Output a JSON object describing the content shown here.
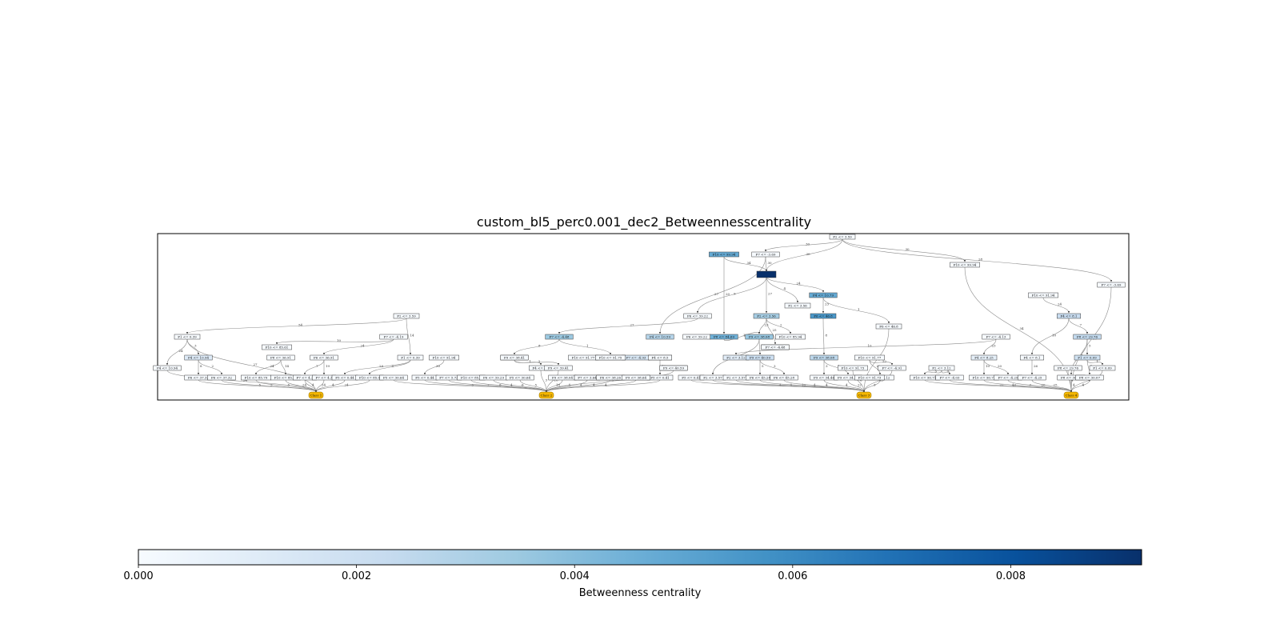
{
  "figure": {
    "title": "custom_bl5_perc0.001_dec2_Betweennesscentrality"
  },
  "colorbar": {
    "label": "Betweenness centrality",
    "min": 0.0,
    "max": 0.0092,
    "ticks": [
      "0.000",
      "0.002",
      "0.004",
      "0.006",
      "0.008"
    ],
    "tick_values": [
      0.0,
      0.002,
      0.004,
      0.006,
      0.008
    ],
    "colormap": [
      "#f7fbff",
      "#deebf7",
      "#c6dbef",
      "#9ecae1",
      "#6baed6",
      "#4292c6",
      "#2171b5",
      "#08519c",
      "#08306b"
    ]
  },
  "chart_data": {
    "type": "graph",
    "class_color": "#f5b700",
    "edge_color": "#8a8a8a",
    "nodes": [
      {
        "id": "n0",
        "label": "F2 <= 3.59",
        "c": 0.0
      },
      {
        "id": "n1",
        "label": "F10 <= 99.94",
        "c": 0.0048
      },
      {
        "id": "n2",
        "label": "F7 <= -3.69",
        "c": 0.0
      },
      {
        "id": "n3",
        "label": "F10 <= 99.94",
        "c": 0.0
      },
      {
        "id": "n4",
        "label": "",
        "c": 0.0092
      },
      {
        "id": "n5",
        "label": "F7 <= -3.69",
        "c": 0.0
      },
      {
        "id": "n6",
        "label": "F4 <= 10.79",
        "c": 0.0048
      },
      {
        "id": "n7",
        "label": "F2 <= 3.56",
        "c": 0.0
      },
      {
        "id": "n8",
        "label": "F10 <= 91.94",
        "c": 0.0
      },
      {
        "id": "n9",
        "label": "F2 <= 3.59",
        "c": 0.0
      },
      {
        "id": "n10",
        "label": "F2 <= 3.56",
        "c": 0.0032
      },
      {
        "id": "n11",
        "label": "F6 <= 46.8",
        "c": 0.0055
      },
      {
        "id": "n12",
        "label": "F6 <= 39.22",
        "c": 0.0
      },
      {
        "id": "n13",
        "label": "F6 <= 46.8",
        "c": 0.0
      },
      {
        "id": "n14",
        "label": "F4 <= 8.1",
        "c": 0.0022
      },
      {
        "id": "n15",
        "label": "F1 <= 0.39",
        "c": 0.0
      },
      {
        "id": "n16",
        "label": "F7 <= -4.19",
        "c": 0.0
      },
      {
        "id": "n17",
        "label": "F7 <= -4.48",
        "c": 0.0035
      },
      {
        "id": "n18",
        "label": "F4 <= 10.59",
        "c": 0.0028
      },
      {
        "id": "n19",
        "label": "F6 <= 39.22",
        "c": 0.0
      },
      {
        "id": "n20",
        "label": "F8 <= 84.69",
        "c": 0.0045
      },
      {
        "id": "n21",
        "label": "F9 <= 38.08",
        "c": 0.0036
      },
      {
        "id": "n22",
        "label": "F10 <= 85.94",
        "c": 0.0
      },
      {
        "id": "n23",
        "label": "F7 <= -4.13",
        "c": 0.0
      },
      {
        "id": "n24",
        "label": "F8 <= 29.76",
        "c": 0.0024
      },
      {
        "id": "n25",
        "label": "F10 <= 85.61",
        "c": 0.0
      },
      {
        "id": "n26",
        "label": "F7 <= -4.48",
        "c": 0.0
      },
      {
        "id": "n27",
        "label": "F4 <= 10.94",
        "c": 0.0012
      },
      {
        "id": "n28",
        "label": "F8 <= 36.91",
        "c": 0.0
      },
      {
        "id": "n29",
        "label": "F6 <= 36.91",
        "c": 0.0
      },
      {
        "id": "n30",
        "label": "F1 <= 0.39",
        "c": 0.0
      },
      {
        "id": "n31",
        "label": "F10 <= 91.94",
        "c": 0.0
      },
      {
        "id": "n32",
        "label": "F9 <= 39.41",
        "c": 0.0028
      },
      {
        "id": "n33",
        "label": "F10 <= 91.77",
        "c": 0.0
      },
      {
        "id": "n34",
        "label": "F10 <= 91.79",
        "c": 0.0016
      },
      {
        "id": "n35",
        "label": "F7 <= -4.93",
        "c": 0.0014
      },
      {
        "id": "n36",
        "label": "F4 <= 8.3",
        "c": 0.0014
      },
      {
        "id": "n37",
        "label": "F2 <= 3.12",
        "c": 0.0009
      },
      {
        "id": "n38",
        "label": "F9 <= 40.59",
        "c": 0.002
      },
      {
        "id": "n39",
        "label": "F9 <= 38.08",
        "c": 0.0026
      },
      {
        "id": "n40",
        "label": "F10 <= 91.77",
        "c": 0.0
      },
      {
        "id": "n41",
        "label": "F2 <= 3.12",
        "c": 0.0
      },
      {
        "id": "n42",
        "label": "F4 <= 8.25",
        "c": 0.0008
      },
      {
        "id": "n43",
        "label": "F4 <= 8.1",
        "c": 0.0
      },
      {
        "id": "n44",
        "label": "F1 <= 0.09",
        "c": 0.0018
      },
      {
        "id": "n45",
        "label": "F4 <= 10.94",
        "c": 0.0
      },
      {
        "id": "n46",
        "label": "F6 <= 37.32",
        "c": 0.0
      },
      {
        "id": "n47",
        "label": "F6 <= 37.32",
        "c": 0.0
      },
      {
        "id": "n48",
        "label": "F10 <= 85.79",
        "c": 0.0
      },
      {
        "id": "n49",
        "label": "F10 <= 85.79",
        "c": 0.0
      },
      {
        "id": "n50",
        "label": "F7 <= 4.3",
        "c": 0.0
      },
      {
        "id": "n51",
        "label": "F7 <= 4.3",
        "c": 0.0
      },
      {
        "id": "n52",
        "label": "F5 <= 0.44",
        "c": 0.0
      },
      {
        "id": "n53",
        "label": "F10 <= 85.0",
        "c": 0.0
      },
      {
        "id": "n54",
        "label": "F5 <= 30.64",
        "c": 0.0
      },
      {
        "id": "n55",
        "label": "F5 <= 0.44",
        "c": 0.0
      },
      {
        "id": "n56",
        "label": "F7 <= 5.73",
        "c": 0.0
      },
      {
        "id": "n57",
        "label": "F10 <= 85.0",
        "c": 0.0
      },
      {
        "id": "n58",
        "label": "F6 <= 39.29",
        "c": 0.0
      },
      {
        "id": "n59",
        "label": "F5 <= 30.64",
        "c": 0.0
      },
      {
        "id": "n60",
        "label": "F4 <= 8.3",
        "c": 0.0
      },
      {
        "id": "n61",
        "label": "F9 <= 39.41",
        "c": 0.0
      },
      {
        "id": "n62",
        "label": "F9 <= 38.04",
        "c": 0.0
      },
      {
        "id": "n63",
        "label": "F7 <= 5.73",
        "c": 0.0
      },
      {
        "id": "n64",
        "label": "F6 <= 39.29",
        "c": 0.0
      },
      {
        "id": "n65",
        "label": "F9 <= 38.04",
        "c": 0.0
      },
      {
        "id": "n66",
        "label": "F5 <= 0.41",
        "c": 0.0
      },
      {
        "id": "n67",
        "label": "F9 <= 40.59",
        "c": 0.0
      },
      {
        "id": "n68",
        "label": "F5 <= 0.41",
        "c": 0.0
      },
      {
        "id": "n69",
        "label": "F2 <= 3.57",
        "c": 0.0
      },
      {
        "id": "n70",
        "label": "F2 <= 3.57",
        "c": 0.0
      },
      {
        "id": "n71",
        "label": "F6 <= 45.28",
        "c": 0.0
      },
      {
        "id": "n72",
        "label": "F6 <= 45.28",
        "c": 0.0
      },
      {
        "id": "n73",
        "label": "F9 <= 34.46",
        "c": 0.0
      },
      {
        "id": "n74",
        "label": "F9 <= 34.46",
        "c": 0.0
      },
      {
        "id": "n75",
        "label": "F10 <= 91.73",
        "c": 0.0
      },
      {
        "id": "n76",
        "label": "F7 <= -4.12",
        "c": 0.0
      },
      {
        "id": "n77",
        "label": "F7 <= -4.91",
        "c": 0.0
      },
      {
        "id": "n78",
        "label": "F10 <= 90.71",
        "c": 0.0
      },
      {
        "id": "n79",
        "label": "F7 <= -4.03",
        "c": 0.0
      },
      {
        "id": "n80",
        "label": "F10 <= 90.71",
        "c": 0.0
      },
      {
        "id": "n81",
        "label": "F7 <= -4.25",
        "c": 0.0
      },
      {
        "id": "n82",
        "label": "F7 <= -4.25",
        "c": 0.0
      },
      {
        "id": "n83",
        "label": "F8 <= 29.76",
        "c": 0.0
      },
      {
        "id": "n84",
        "label": "F8 <= 30.07",
        "c": 0.0
      },
      {
        "id": "n85",
        "label": "F8 <= 30.07",
        "c": 0.0
      },
      {
        "id": "n86",
        "label": "F1 <= 0.09",
        "c": 0.0
      },
      {
        "id": "n87",
        "label": "F10 <= 91.73",
        "c": 0.0
      },
      {
        "id": "n88",
        "label": "F10 <= 91.75",
        "c": 0.0
      },
      {
        "id": "n89",
        "label": "F7 <= -4.48",
        "c": 0.0
      },
      {
        "id": "n90",
        "label": "F9 <= 38.41",
        "c": 0.0
      },
      {
        "id": "n91",
        "label": "F7 <= 3.64",
        "c": 0.0
      },
      {
        "id": "n92",
        "label": "F6 <= 38.26",
        "c": 0.0
      },
      {
        "id": "n93",
        "label": "F9 <= 38.64",
        "c": 0.0
      },
      {
        "id": "n94",
        "label": "F9 <= 40.59",
        "c": 0.0
      },
      {
        "id": "n95",
        "label": "F4 <= 8.5",
        "c": 0.0
      }
    ],
    "classes": [
      {
        "id": "c1",
        "label": "Class 1"
      },
      {
        "id": "c2",
        "label": "Class 2"
      },
      {
        "id": "c3",
        "label": "Class 3"
      },
      {
        "id": "c4",
        "label": "Class 4"
      }
    ],
    "edges": [
      {
        "from": "n0",
        "to": "n2",
        "w": "30"
      },
      {
        "from": "n0",
        "to": "n3",
        "w": "30"
      },
      {
        "from": "n0",
        "to": "n5",
        "w": "28"
      },
      {
        "from": "n0",
        "to": "n4",
        "w": "30"
      },
      {
        "from": "n1",
        "to": "n4",
        "w": "34"
      },
      {
        "from": "n1",
        "to": "n20",
        "w": "20"
      },
      {
        "from": "n2",
        "to": "n4",
        "w": "30"
      },
      {
        "from": "n2",
        "to": "n18",
        "w": "27"
      },
      {
        "from": "n4",
        "to": "n6",
        "w": "24"
      },
      {
        "from": "n4",
        "to": "n7",
        "w": "4"
      },
      {
        "from": "n4",
        "to": "n10",
        "w": "27"
      },
      {
        "from": "n4",
        "to": "n12",
        "w": "9"
      },
      {
        "from": "n6",
        "to": "n11",
        "w": "23"
      },
      {
        "from": "n6",
        "to": "n13",
        "w": "1"
      },
      {
        "from": "n10",
        "to": "n21",
        "w": "23"
      },
      {
        "from": "n10",
        "to": "n22",
        "w": "2"
      },
      {
        "from": "n10",
        "to": "n26",
        "w": "25"
      },
      {
        "from": "n11",
        "to": "n39",
        "w": "8"
      },
      {
        "from": "n9",
        "to": "n15",
        "w": "54"
      },
      {
        "from": "n9",
        "to": "n30",
        "w": "14"
      },
      {
        "from": "n12",
        "to": "n17",
        "w": "27"
      },
      {
        "from": "n15",
        "to": "n27",
        "w": "3"
      },
      {
        "from": "n15",
        "to": "n45",
        "w": "24"
      },
      {
        "from": "n15",
        "to": "c1",
        "w": "27"
      },
      {
        "from": "n16",
        "to": "n25",
        "w": "10"
      },
      {
        "from": "n16",
        "to": "n29",
        "w": "24"
      },
      {
        "from": "n14",
        "to": "n24",
        "w": "7"
      },
      {
        "from": "n14",
        "to": "n43",
        "w": "10"
      },
      {
        "from": "n8",
        "to": "n14",
        "w": "24"
      },
      {
        "from": "n24",
        "to": "n44",
        "w": "5"
      },
      {
        "from": "n24",
        "to": "n84",
        "w": "4"
      },
      {
        "from": "n23",
        "to": "n42",
        "w": "23"
      },
      {
        "from": "n23",
        "to": "n37",
        "w": "10"
      },
      {
        "from": "n17",
        "to": "n32",
        "w": "8"
      },
      {
        "from": "n17",
        "to": "n34",
        "w": "1"
      },
      {
        "from": "n20",
        "to": "n21",
        "w": "10"
      },
      {
        "from": "n21",
        "to": "n38",
        "w": "11"
      },
      {
        "from": "n21",
        "to": "n69",
        "w": "3"
      },
      {
        "from": "n27",
        "to": "n46",
        "w": "8"
      },
      {
        "from": "n27",
        "to": "n47",
        "w": "2"
      },
      {
        "from": "n28",
        "to": "n48",
        "w": "24"
      },
      {
        "from": "n28",
        "to": "n49",
        "w": "14"
      },
      {
        "from": "n29",
        "to": "n50",
        "w": "7"
      },
      {
        "from": "n29",
        "to": "n51",
        "w": "19"
      },
      {
        "from": "n30",
        "to": "n52",
        "w": "29"
      },
      {
        "from": "n30",
        "to": "n53",
        "w": "5"
      },
      {
        "from": "n31",
        "to": "n55",
        "w": "30"
      },
      {
        "from": "n32",
        "to": "n61",
        "w": "3"
      },
      {
        "from": "n32",
        "to": "n60",
        "w": "1"
      },
      {
        "from": "n36",
        "to": "n66",
        "w": "15"
      },
      {
        "from": "n38",
        "to": "n71",
        "w": "5"
      },
      {
        "from": "n38",
        "to": "n72",
        "w": "3"
      },
      {
        "from": "n39",
        "to": "n73",
        "w": "3"
      },
      {
        "from": "n39",
        "to": "n74",
        "w": "1"
      },
      {
        "from": "n40",
        "to": "n76",
        "w": "25"
      },
      {
        "from": "n40",
        "to": "n77",
        "w": "22"
      },
      {
        "from": "n41",
        "to": "n78",
        "w": "5"
      },
      {
        "from": "n41",
        "to": "n79",
        "w": "5"
      },
      {
        "from": "n42",
        "to": "n80",
        "w": "10"
      },
      {
        "from": "n42",
        "to": "n81",
        "w": "20"
      },
      {
        "from": "n43",
        "to": "n82",
        "w": "26"
      },
      {
        "from": "n44",
        "to": "n85",
        "w": "4"
      },
      {
        "from": "n44",
        "to": "n86",
        "w": "1"
      },
      {
        "from": "n45",
        "to": "c1",
        "w": "34"
      },
      {
        "from": "n46",
        "to": "c1",
        "w": "5"
      },
      {
        "from": "n47",
        "to": "c1",
        "w": "5"
      },
      {
        "from": "n48",
        "to": "c1",
        "w": "5"
      },
      {
        "from": "n49",
        "to": "c1",
        "w": "24"
      },
      {
        "from": "n50",
        "to": "c1",
        "w": "4"
      },
      {
        "from": "n51",
        "to": "c1",
        "w": "24"
      },
      {
        "from": "n52",
        "to": "c1",
        "w": "4"
      },
      {
        "from": "n53",
        "to": "c1",
        "w": "24"
      },
      {
        "from": "n54",
        "to": "c2",
        "w": "5"
      },
      {
        "from": "n55",
        "to": "c2",
        "w": "7"
      },
      {
        "from": "n56",
        "to": "c2",
        "w": "6"
      },
      {
        "from": "n57",
        "to": "c2",
        "w": "4"
      },
      {
        "from": "n58",
        "to": "c2",
        "w": "6"
      },
      {
        "from": "n59",
        "to": "c2",
        "w": "5"
      },
      {
        "from": "n60",
        "to": "c2",
        "w": "3"
      },
      {
        "from": "n61",
        "to": "c2",
        "w": "10"
      },
      {
        "from": "n62",
        "to": "c2",
        "w": "18"
      },
      {
        "from": "n63",
        "to": "c2",
        "w": "4"
      },
      {
        "from": "n64",
        "to": "c2",
        "w": "4"
      },
      {
        "from": "n65",
        "to": "c2",
        "w": "4"
      },
      {
        "from": "n66",
        "to": "c2",
        "w": "4"
      },
      {
        "from": "n67",
        "to": "c2",
        "w": "8"
      },
      {
        "from": "n68",
        "to": "c3",
        "w": "4"
      },
      {
        "from": "n69",
        "to": "c3",
        "w": "4"
      },
      {
        "from": "n70",
        "to": "c3",
        "w": "10"
      },
      {
        "from": "n71",
        "to": "c3",
        "w": "4"
      },
      {
        "from": "n72",
        "to": "c3",
        "w": "4"
      },
      {
        "from": "n73",
        "to": "c3",
        "w": "4"
      },
      {
        "from": "n74",
        "to": "c3",
        "w": "22"
      },
      {
        "from": "n75",
        "to": "c3",
        "w": "8"
      },
      {
        "from": "n76",
        "to": "c3",
        "w": "3"
      },
      {
        "from": "n77",
        "to": "c3",
        "w": "23"
      },
      {
        "from": "n13",
        "to": "c3",
        "w": "6"
      },
      {
        "from": "n78",
        "to": "c4",
        "w": "22"
      },
      {
        "from": "n79",
        "to": "c4",
        "w": "40"
      },
      {
        "from": "n80",
        "to": "c4",
        "w": "7"
      },
      {
        "from": "n81",
        "to": "c4",
        "w": "20"
      },
      {
        "from": "n82",
        "to": "c4",
        "w": "25"
      },
      {
        "from": "n83",
        "to": "c4",
        "w": "4"
      },
      {
        "from": "n84",
        "to": "c4",
        "w": "4"
      },
      {
        "from": "n85",
        "to": "c4",
        "w": "4"
      },
      {
        "from": "n86",
        "to": "c4",
        "w": "4"
      },
      {
        "from": "n5",
        "to": "c4",
        "w": "20"
      },
      {
        "from": "n3",
        "to": "c4",
        "w": "34"
      }
    ]
  }
}
